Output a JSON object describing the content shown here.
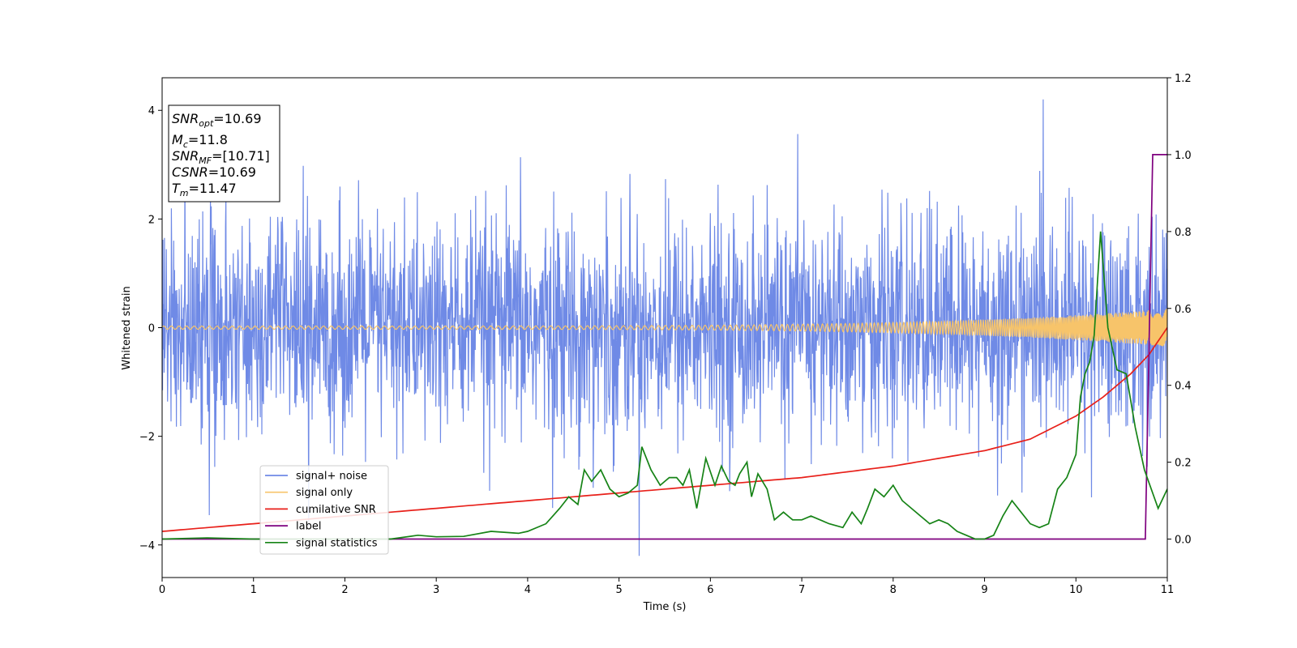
{
  "chart_data": {
    "type": "line",
    "xlabel": "Time (s)",
    "ylabel": "Whitened strain",
    "xlim": [
      0,
      11
    ],
    "ylim_left": [
      -4.6,
      4.6
    ],
    "ylim_right": [
      -0.1,
      1.2
    ],
    "x_ticks": [
      0,
      1,
      2,
      3,
      4,
      5,
      6,
      7,
      8,
      9,
      10,
      11
    ],
    "y_ticks_left": [
      -4,
      -2,
      0,
      2,
      4
    ],
    "y_ticks_right": [
      0.0,
      0.2,
      0.4,
      0.6,
      0.8,
      1.0,
      1.2
    ],
    "legend_placement": "lower-left",
    "series": [
      {
        "name": "signal+ noise",
        "axis": "left",
        "color": "#6f8ae6",
        "kind": "gaussian noise, std ~1.0, occasional peaks to about +4.15 and -4.15",
        "noise_std": 1.0
      },
      {
        "name": "signal only",
        "axis": "left",
        "color": "#f7c46a",
        "kind": "chirp oscillation, amplitude growing from ~0.03 at t=0 to ~0.35 at t=11"
      },
      {
        "name": "cumilative SNR",
        "axis": "right",
        "color": "#e8201a",
        "x": [
          0,
          1,
          2,
          3,
          4,
          5,
          6,
          7,
          8,
          9,
          9.5,
          10,
          10.3,
          10.6,
          10.8,
          11
        ],
        "y": [
          0.02,
          0.04,
          0.06,
          0.08,
          0.1,
          0.12,
          0.14,
          0.16,
          0.19,
          0.23,
          0.26,
          0.32,
          0.37,
          0.43,
          0.48,
          0.55
        ]
      },
      {
        "name": "label",
        "axis": "right",
        "color": "#7f007f",
        "x": [
          0,
          10.76,
          10.84,
          11
        ],
        "y": [
          0.0,
          0.0,
          1.0,
          1.0
        ]
      },
      {
        "name": "signal statistics",
        "axis": "right",
        "color": "#168316",
        "x": [
          0,
          0.5,
          1,
          1.5,
          2,
          2.5,
          2.8,
          3,
          3.3,
          3.6,
          3.9,
          4.0,
          4.2,
          4.35,
          4.45,
          4.55,
          4.62,
          4.7,
          4.8,
          4.9,
          5.0,
          5.1,
          5.2,
          5.25,
          5.35,
          5.45,
          5.55,
          5.63,
          5.7,
          5.77,
          5.85,
          5.95,
          6.05,
          6.12,
          6.2,
          6.27,
          6.32,
          6.4,
          6.45,
          6.52,
          6.62,
          6.7,
          6.8,
          6.9,
          7.0,
          7.1,
          7.3,
          7.45,
          7.55,
          7.65,
          7.72,
          7.8,
          7.9,
          8.0,
          8.1,
          8.2,
          8.3,
          8.4,
          8.5,
          8.6,
          8.7,
          8.8,
          8.9,
          9.0,
          9.1,
          9.2,
          9.3,
          9.4,
          9.5,
          9.6,
          9.7,
          9.8,
          9.9,
          10.0,
          10.05,
          10.1,
          10.15,
          10.2,
          10.27,
          10.35,
          10.45,
          10.55,
          10.65,
          10.75,
          10.9,
          11.0
        ],
        "y": [
          0.0,
          0.003,
          0.0,
          0.0,
          0.0,
          0.0,
          0.01,
          0.006,
          0.007,
          0.02,
          0.015,
          0.02,
          0.04,
          0.08,
          0.11,
          0.09,
          0.18,
          0.15,
          0.18,
          0.13,
          0.11,
          0.12,
          0.14,
          0.24,
          0.18,
          0.14,
          0.16,
          0.16,
          0.14,
          0.18,
          0.08,
          0.21,
          0.14,
          0.19,
          0.15,
          0.14,
          0.17,
          0.2,
          0.11,
          0.17,
          0.13,
          0.05,
          0.07,
          0.05,
          0.05,
          0.06,
          0.04,
          0.03,
          0.07,
          0.04,
          0.08,
          0.13,
          0.11,
          0.14,
          0.1,
          0.08,
          0.06,
          0.04,
          0.05,
          0.04,
          0.02,
          0.01,
          0.0,
          0.0,
          0.01,
          0.06,
          0.1,
          0.07,
          0.04,
          0.03,
          0.04,
          0.13,
          0.16,
          0.22,
          0.37,
          0.43,
          0.46,
          0.53,
          0.8,
          0.55,
          0.44,
          0.43,
          0.29,
          0.18,
          0.08,
          0.13
        ]
      }
    ],
    "annotation": [
      {
        "base": "SNR",
        "sub": "opt",
        "value": "=10.69"
      },
      {
        "base": "M",
        "sub": "c",
        "value": "=11.8"
      },
      {
        "base": "SNR",
        "sub": "MF",
        "value": "=[10.71]"
      },
      {
        "base": "CSNR",
        "sub": "",
        "value": "=10.69"
      },
      {
        "base": "T",
        "sub": "m",
        "value": "=11.47"
      }
    ]
  }
}
